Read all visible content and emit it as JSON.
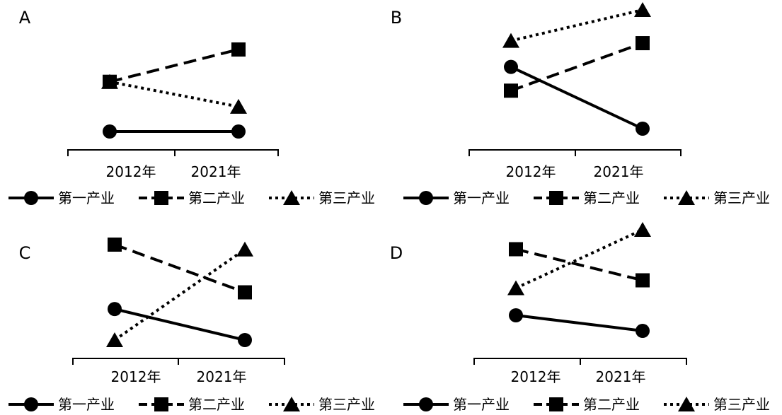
{
  "chart_data": [
    {
      "type": "line",
      "panel": "A",
      "categories": [
        "2012年",
        "2021年"
      ],
      "series": [
        {
          "name": "第一产业",
          "style": "solid",
          "marker": "circle",
          "values": [
            1.0,
            1.0
          ]
        },
        {
          "name": "第二产业",
          "style": "dashed",
          "marker": "square",
          "values": [
            3.0,
            4.3
          ]
        },
        {
          "name": "第三产业",
          "style": "dotted",
          "marker": "triangle",
          "values": [
            3.0,
            2.0
          ]
        }
      ]
    },
    {
      "type": "line",
      "panel": "B",
      "categories": [
        "2012年",
        "2021年"
      ],
      "series": [
        {
          "name": "第一产业",
          "style": "solid",
          "marker": "circle",
          "values": [
            3.6,
            1.0
          ]
        },
        {
          "name": "第二产业",
          "style": "dashed",
          "marker": "square",
          "values": [
            2.6,
            4.6
          ]
        },
        {
          "name": "第三产业",
          "style": "dotted",
          "marker": "triangle",
          "values": [
            4.7,
            6.0
          ]
        }
      ]
    },
    {
      "type": "line",
      "panel": "C",
      "categories": [
        "2012年",
        "2021年"
      ],
      "series": [
        {
          "name": "第一产业",
          "style": "solid",
          "marker": "circle",
          "values": [
            2.3,
            1.0
          ]
        },
        {
          "name": "第二产业",
          "style": "dashed",
          "marker": "square",
          "values": [
            5.0,
            3.0
          ]
        },
        {
          "name": "第三产业",
          "style": "dotted",
          "marker": "triangle",
          "values": [
            1.0,
            4.8
          ]
        }
      ]
    },
    {
      "type": "line",
      "panel": "D",
      "categories": [
        "2012年",
        "2021年"
      ],
      "series": [
        {
          "name": "第一产业",
          "style": "solid",
          "marker": "circle",
          "values": [
            1.4,
            1.0
          ]
        },
        {
          "name": "第二产业",
          "style": "dashed",
          "marker": "square",
          "values": [
            3.1,
            2.3
          ]
        },
        {
          "name": "第三产业",
          "style": "dotted",
          "marker": "triangle",
          "values": [
            2.1,
            3.6
          ]
        }
      ]
    }
  ]
}
